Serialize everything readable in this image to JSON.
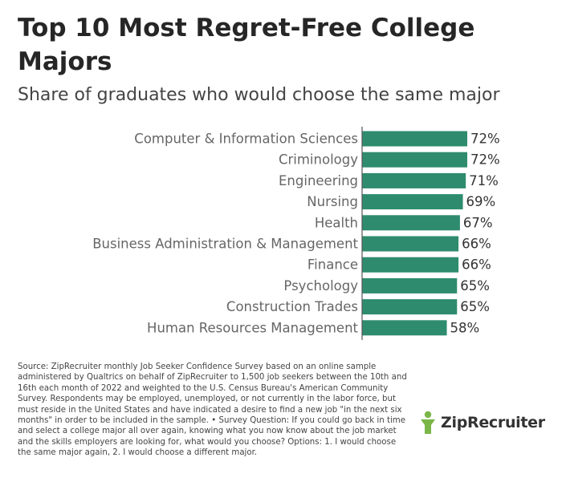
{
  "title": "Top 10 Most Regret-Free College Majors",
  "subtitle": "Share of graduates who would choose the same major",
  "source": "Source: ZipRecruiter monthly Job Seeker Confidence Survey based on an online sample administered by Qualtrics on behalf of ZipRecruiter to 1,500 job seekers between the 10th and 16th each month of 2022 and weighted to the U.S. Census Bureau's American Community Survey. Respondents may be employed, unemployed, or not currently in the labor force, but must reside in the United States and have indicated a desire to find a new job \"in the next six months\" in order to be included in the sample. • Survey Question: If you could go back in time and select a college major all over again, knowing what you now know about the job market and the skills employers are looking for, what would you choose? Options: 1. I would choose the same major again, 2. I would choose a different major.",
  "brand": {
    "name": "ZipRecruiter",
    "accent_color": "#7ab648"
  },
  "chart_data": {
    "type": "bar",
    "orientation": "horizontal",
    "categories": [
      "Computer & Information Sciences",
      "Criminology",
      "Engineering",
      "Nursing",
      "Health",
      "Business Administration & Management",
      "Finance",
      "Psychology",
      "Construction Trades",
      "Human Resources Management"
    ],
    "values": [
      72,
      72,
      71,
      69,
      67,
      66,
      66,
      65,
      65,
      58
    ],
    "value_labels": [
      "72%",
      "72%",
      "71%",
      "69%",
      "67%",
      "66%",
      "66%",
      "65%",
      "65%",
      "58%"
    ],
    "unit": "%",
    "bar_color": "#2e8b6e",
    "axis_line_color": "#555555",
    "title": "Top 10 Most Regret-Free College Majors",
    "subtitle": "Share of graduates who would choose the same major",
    "grid": false,
    "legend": "none"
  }
}
